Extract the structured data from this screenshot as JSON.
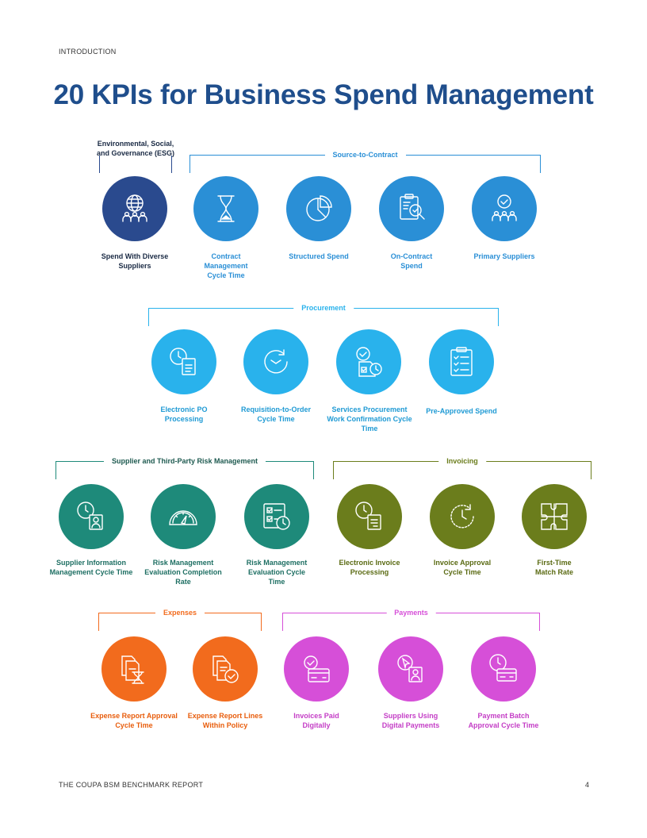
{
  "header": {
    "section": "INTRODUCTION",
    "title": "20 KPIs for Business Spend Management"
  },
  "footer": {
    "report_name": "THE COUPA BSM BENCHMARK REPORT",
    "page_number": "4"
  },
  "colors": {
    "title": "#1f4e8c",
    "esg": "#2a4a8e",
    "source_to_contract": "#2a8fd6",
    "procurement": "#29b2ec",
    "risk": "#1e8a7a",
    "invoicing": "#6b7d1c",
    "expenses": "#f26b1d",
    "payments": "#d64fd8"
  },
  "esg": {
    "label": "Environmental, Social, and Governance (ESG)"
  },
  "groups": {
    "source_to_contract": {
      "label": "Source-to-Contract"
    },
    "procurement": {
      "label": "Procurement"
    },
    "risk": {
      "label": "Supplier and Third-Party Risk Management"
    },
    "invoicing": {
      "label": "Invoicing"
    },
    "expenses": {
      "label": "Expenses"
    },
    "payments": {
      "label": "Payments"
    }
  },
  "kpis": [
    {
      "label": "Spend With Diverse Suppliers",
      "icon": "globe-people-icon"
    },
    {
      "label": "Contract Management Cycle Time",
      "icon": "hourglass-icon"
    },
    {
      "label": "Structured Spend",
      "icon": "pie-chart-icon"
    },
    {
      "label": "On-Contract Spend",
      "icon": "clipboard-magnifier-icon"
    },
    {
      "label": "Primary Suppliers",
      "icon": "people-check-icon"
    },
    {
      "label": "Electronic PO Processing",
      "icon": "clock-document-icon"
    },
    {
      "label": "Requisition-to-Order Cycle Time",
      "icon": "circular-arrow-icon"
    },
    {
      "label": "Services Procurement Work Confirmation Cycle Time",
      "icon": "check-document-clock-icon"
    },
    {
      "label": "Pre-Approved Spend",
      "icon": "checklist-icon"
    },
    {
      "label": "Supplier Information Management Cycle Time",
      "icon": "clock-profile-icon"
    },
    {
      "label": "Risk Management Evaluation Completion Rate",
      "icon": "gauge-icon"
    },
    {
      "label": "Risk Management Evaluation Cycle Time",
      "icon": "checklist-clock-icon"
    },
    {
      "label": "Electronic Invoice Processing",
      "icon": "clock-invoice-icon"
    },
    {
      "label": "Invoice Approval Cycle Time",
      "icon": "clock-arrow-icon"
    },
    {
      "label": "First-Time Match Rate",
      "icon": "puzzle-icon"
    },
    {
      "label": "Expense Report Approval Cycle Time",
      "icon": "documents-hourglass-icon"
    },
    {
      "label": "Expense Report Lines Within Policy",
      "icon": "documents-check-icon"
    },
    {
      "label": "Invoices Paid Digitally",
      "icon": "check-card-icon"
    },
    {
      "label": "Suppliers Using Digital Payments",
      "icon": "cursor-profile-icon"
    },
    {
      "label": "Payment Batch Approval Cycle Time",
      "icon": "clock-card-icon"
    }
  ]
}
